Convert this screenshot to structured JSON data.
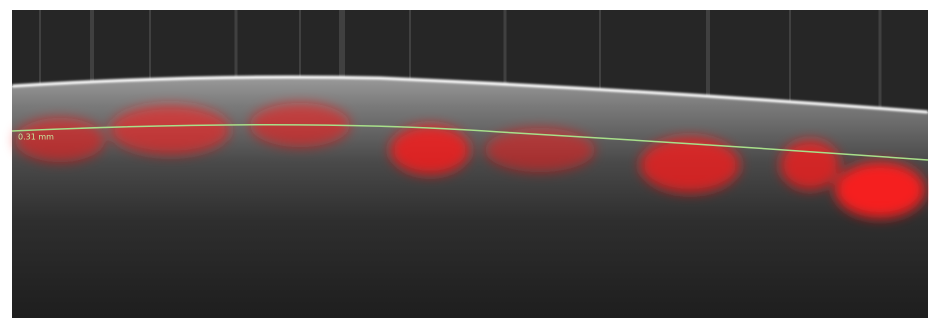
{
  "annotation": {
    "label": "0.31 mm"
  }
}
